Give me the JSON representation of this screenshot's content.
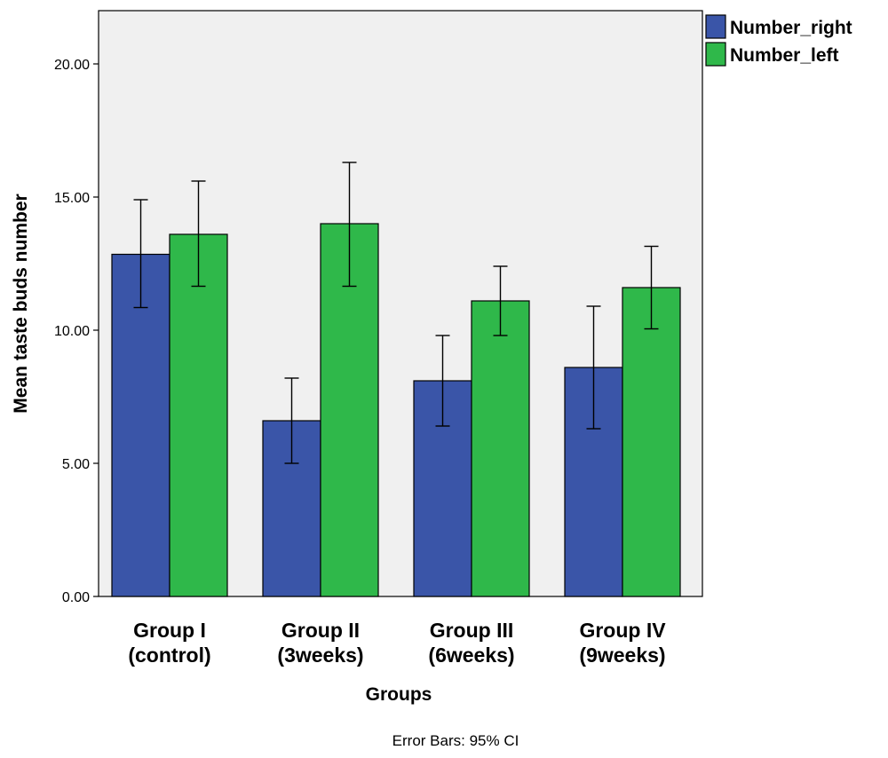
{
  "chart_data": {
    "type": "bar",
    "categories": [
      [
        "Group I",
        "(control)"
      ],
      [
        "Group II",
        "(3weeks)"
      ],
      [
        "Group III",
        "(6weeks)"
      ],
      [
        "Group IV",
        "(9weeks)"
      ]
    ],
    "series": [
      {
        "name": "Number_right",
        "color": "#3a55a8",
        "values": [
          12.85,
          6.6,
          8.1,
          8.6
        ],
        "ci_low": [
          10.85,
          5.0,
          6.4,
          6.3
        ],
        "ci_high": [
          14.9,
          8.2,
          9.8,
          10.9
        ]
      },
      {
        "name": "Number_left",
        "color": "#2fb84a",
        "values": [
          13.6,
          14.0,
          11.1,
          11.6
        ],
        "ci_low": [
          11.65,
          11.65,
          9.8,
          10.05
        ],
        "ci_high": [
          15.6,
          16.3,
          12.4,
          13.15
        ]
      }
    ],
    "xlabel": "Groups",
    "ylabel": "Mean taste buds number",
    "ylim": [
      0,
      22
    ],
    "yticks": [
      "0.00",
      "5.00",
      "10.00",
      "15.00",
      "20.00"
    ],
    "ytick_values": [
      0,
      5,
      10,
      15,
      20
    ],
    "legend_position": "top-right",
    "plot_background": "#f0f0f0",
    "footnote": "Error Bars: 95% CI"
  }
}
